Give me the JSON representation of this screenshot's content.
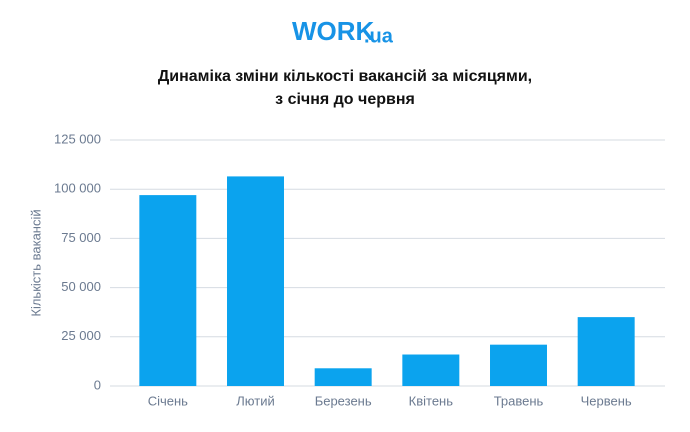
{
  "logo": {
    "name": "WORK",
    "domain": ".ua"
  },
  "chart_data": {
    "type": "bar",
    "title": [
      "Динаміка зміни кількості вакансій за місяцями,",
      "з січня до червня"
    ],
    "y_label": "Кількість вакансій",
    "categories": [
      "Січень",
      "Лютий",
      "Березень",
      "Квітень",
      "Травень",
      "Червень"
    ],
    "values": [
      97000,
      106500,
      9000,
      16000,
      21000,
      35000
    ],
    "color": "#0ba3ee",
    "ylim": [
      0,
      125000
    ],
    "yticks": [
      0,
      {
        "value": 25000,
        "label": "25 000"
      },
      {
        "value": 50000,
        "label": "50 000"
      },
      {
        "value": 75000,
        "label": "75 000"
      },
      {
        "value": 100000,
        "label": "100 000"
      },
      {
        "value": 125000,
        "label": "125 000"
      }
    ],
    "grid": true
  }
}
